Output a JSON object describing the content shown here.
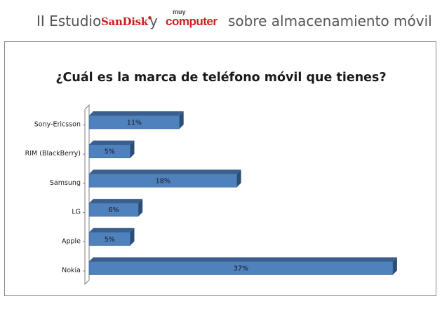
{
  "header": {
    "prefix": "II Estudio",
    "brand1": "SanDisk",
    "joiner": "y",
    "brand2_small": "muy",
    "brand2_main": "computer",
    "suffix": "sobre almacenamiento móvil"
  },
  "chart_data": {
    "type": "bar",
    "orientation": "horizontal",
    "title": "¿Cuál es la marca de teléfono móvil que tienes?",
    "categories": [
      "Sony-Ericsson",
      "RIM (BlackBerry)",
      "Samsung",
      "LG",
      "Apple",
      "Nokia"
    ],
    "values": [
      11,
      5,
      18,
      6,
      5,
      37
    ],
    "data_labels": [
      "11%",
      "5%",
      "18%",
      "6%",
      "5%",
      "37%"
    ],
    "unit": "%",
    "bar_color": "#4f81bd",
    "bar_side_color": "#2c4d75",
    "bar_top_color": "#3a5f8f",
    "grid": false,
    "legend": "none",
    "three_d": true
  }
}
